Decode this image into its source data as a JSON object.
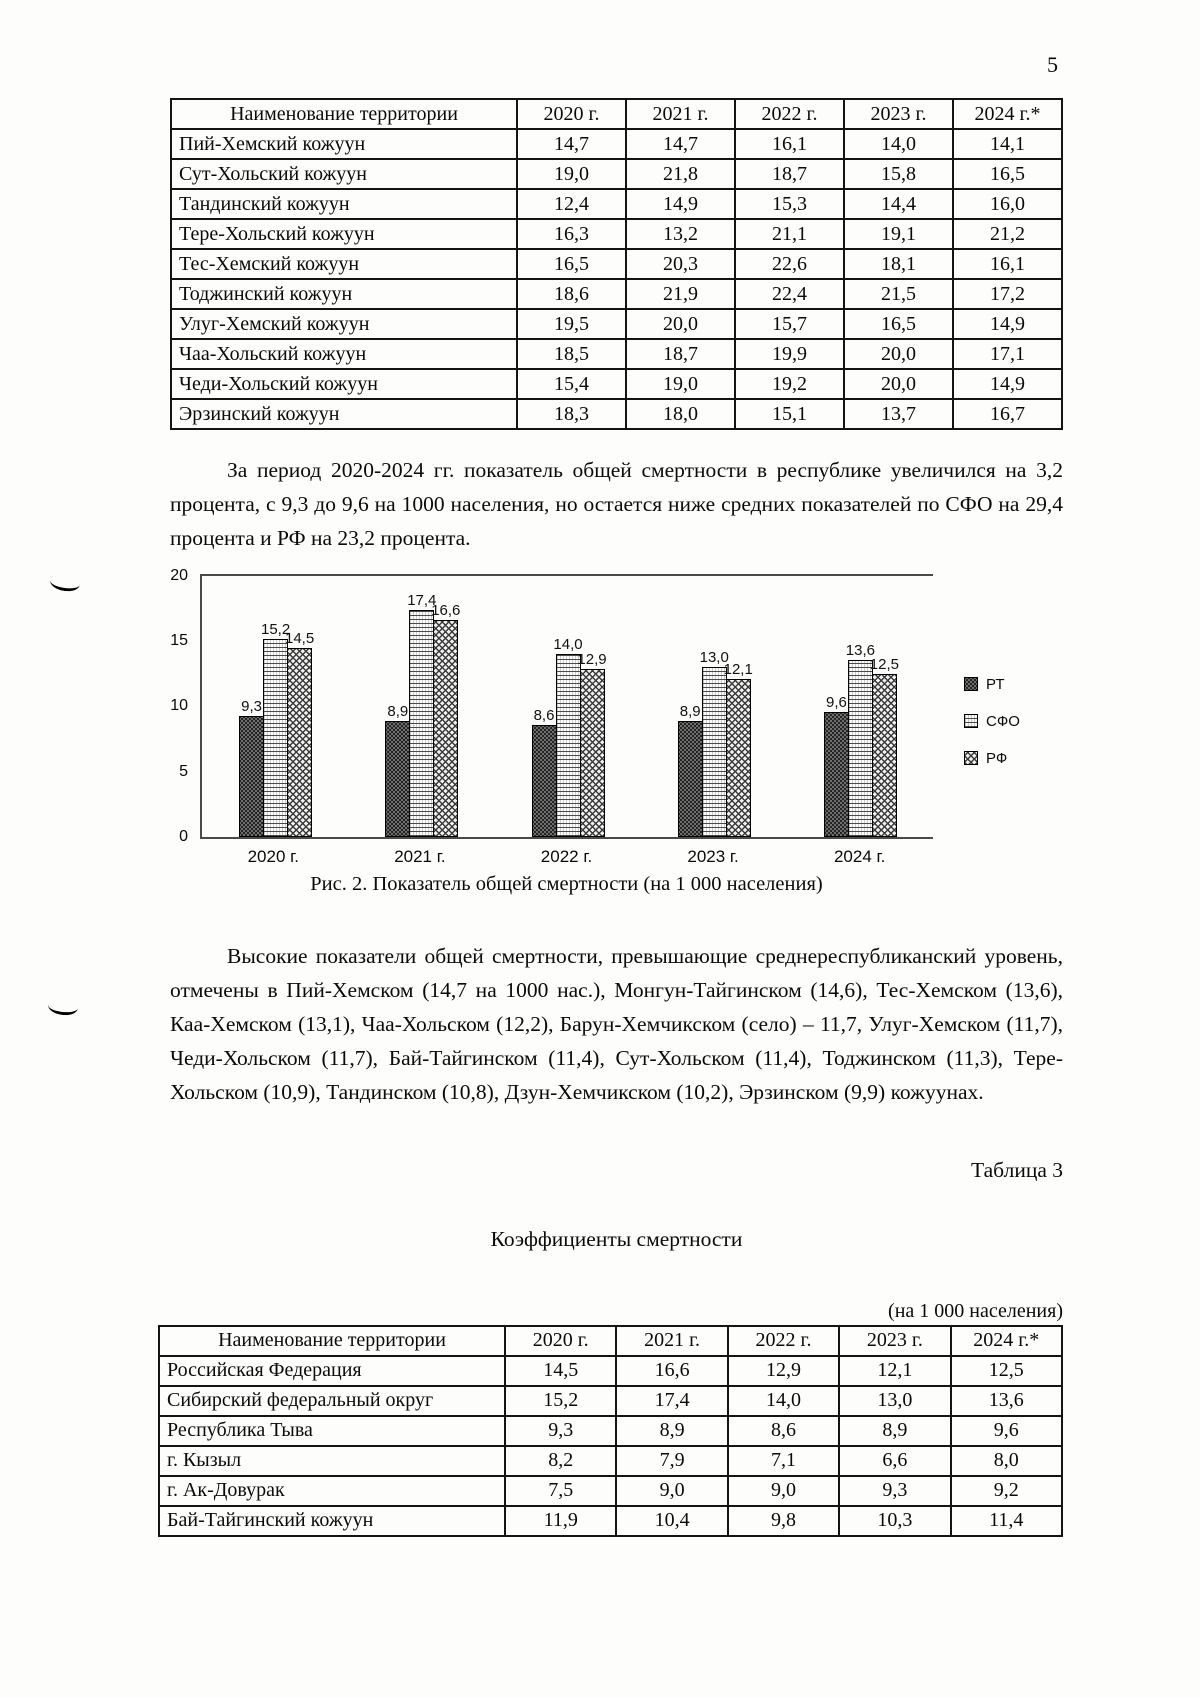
{
  "page": {
    "number": "5"
  },
  "table1": {
    "headers": [
      "Наименование территории",
      "2020 г.",
      "2021 г.",
      "2022 г.",
      "2023 г.",
      "2024 г.*"
    ],
    "rows": [
      [
        "Пий-Хемский кожуун",
        "14,7",
        "14,7",
        "16,1",
        "14,0",
        "14,1"
      ],
      [
        "Сут-Хольский кожуун",
        "19,0",
        "21,8",
        "18,7",
        "15,8",
        "16,5"
      ],
      [
        "Тандинский кожуун",
        "12,4",
        "14,9",
        "15,3",
        "14,4",
        "16,0"
      ],
      [
        "Тере-Хольский кожуун",
        "16,3",
        "13,2",
        "21,1",
        "19,1",
        "21,2"
      ],
      [
        "Тес-Хемский кожуун",
        "16,5",
        "20,3",
        "22,6",
        "18,1",
        "16,1"
      ],
      [
        "Тоджинский кожуун",
        "18,6",
        "21,9",
        "22,4",
        "21,5",
        "17,2"
      ],
      [
        "Улуг-Хемский кожуун",
        "19,5",
        "20,0",
        "15,7",
        "16,5",
        "14,9"
      ],
      [
        "Чаа-Хольский кожуун",
        "18,5",
        "18,7",
        "19,9",
        "20,0",
        "17,1"
      ],
      [
        "Чеди-Хольский кожуун",
        "15,4",
        "19,0",
        "19,2",
        "20,0",
        "14,9"
      ],
      [
        "Эрзинский кожуун",
        "18,3",
        "18,0",
        "15,1",
        "13,7",
        "16,7"
      ]
    ]
  },
  "paragraphs": {
    "p1": "За период 2020-2024 гг. показатель общей смертности в республике увеличился на 3,2 процента, с 9,3 до 9,6 на 1000 населения, но остается ниже средних показателей по СФО на 29,4 процента и РФ на 23,2 процента.",
    "p2": "Высокие показатели общей смертности, превышающие среднереспубликанский уровень, отмечены в Пий-Хемском (14,7 на 1000 нас.), Монгун-Тайгинском (14,6), Тес-Хемском (13,6), Каа-Хемском (13,1), Чаа-Хольском (12,2), Барун-Хемчикском (село) – 11,7, Улуг-Хемском (11,7), Чеди-Хольском (11,7), Бай-Тайгинском (11,4), Сут-Хольском (11,4), Тоджинском (11,3), Тере-Хольском (10,9), Тандинском (10,8), Дзун-Хемчикском (10,2), Эрзинском (9,9) кожуунах."
  },
  "chart_data": {
    "type": "bar",
    "categories": [
      "2020 г.",
      "2021 г.",
      "2022 г.",
      "2023 г.",
      "2024 г."
    ],
    "series": [
      {
        "name": "РТ",
        "key": "rt",
        "values": [
          9.3,
          8.9,
          8.6,
          8.9,
          9.6
        ],
        "labels": [
          "9,3",
          "8,9",
          "8,6",
          "8,9",
          "9,6"
        ]
      },
      {
        "name": "СФО",
        "key": "sfo",
        "values": [
          15.2,
          17.4,
          14.0,
          13.0,
          13.6
        ],
        "labels": [
          "15,2",
          "17,4",
          "14,0",
          "13,0",
          "13,6"
        ]
      },
      {
        "name": "РФ",
        "key": "rf",
        "values": [
          14.5,
          16.6,
          12.9,
          12.1,
          12.5
        ],
        "labels": [
          "14,5",
          "16,6",
          "12,9",
          "12,1",
          "12,5"
        ]
      }
    ],
    "ylim": [
      0,
      20
    ],
    "yticks": [
      0,
      5,
      10,
      15,
      20
    ],
    "grid": false,
    "legend_position": "right",
    "caption": "Рис. 2. Показатель общей смертности (на 1 000 населения)"
  },
  "table3": {
    "label": "Таблица 3",
    "title": "Коэффициенты смертности",
    "unit_note": "(на 1 000 населения)",
    "headers": [
      "Наименование территории",
      "2020 г.",
      "2021 г.",
      "2022 г.",
      "2023 г.",
      "2024 г.*"
    ],
    "rows": [
      [
        "Российская Федерация",
        "14,5",
        "16,6",
        "12,9",
        "12,1",
        "12,5"
      ],
      [
        "Сибирский федеральный округ",
        "15,2",
        "17,4",
        "14,0",
        "13,0",
        "13,6"
      ],
      [
        "Республика Тыва",
        "9,3",
        "8,9",
        "8,6",
        "8,9",
        "9,6"
      ],
      [
        "г. Кызыл",
        "8,2",
        "7,9",
        "7,1",
        "6,6",
        "8,0"
      ],
      [
        "г. Ак-Довурак",
        "7,5",
        "9,0",
        "9,0",
        "9,3",
        "9,2"
      ],
      [
        "Бай-Тайгинский кожуун",
        "11,9",
        "10,4",
        "9,8",
        "10,3",
        "11,4"
      ]
    ]
  }
}
